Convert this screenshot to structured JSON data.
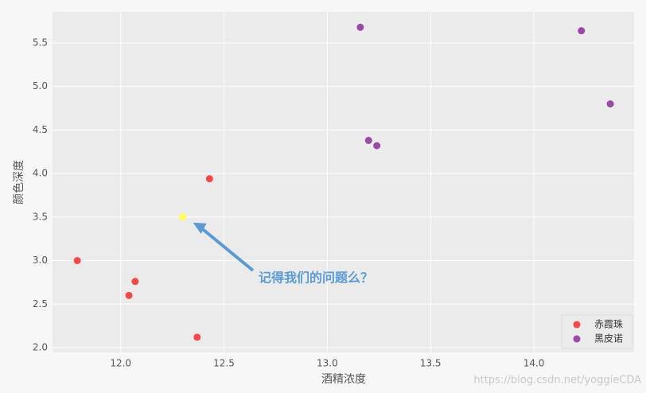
{
  "chart_data": {
    "type": "scatter",
    "xlabel": "酒精浓度",
    "ylabel": "颜色深度",
    "xlim": [
      11.67,
      14.485
    ],
    "ylim": [
      1.945,
      5.856
    ],
    "xticks": [
      {
        "value": 12,
        "label": "12.0"
      },
      12.5,
      {
        "value": 13,
        "label": "13.0"
      },
      13.5,
      {
        "value": 14,
        "label": "14.0"
      }
    ],
    "yticks": [
      {
        "value": 2,
        "label": "2.0"
      },
      2.5,
      {
        "value": 3,
        "label": "3.0"
      },
      3.5,
      {
        "value": 4,
        "label": "4.0"
      },
      4.5,
      {
        "value": 5,
        "label": "5.0"
      },
      5.5
    ],
    "grid": true,
    "legend": "lower right",
    "series": [
      {
        "name": "赤霞珠",
        "color": "#f04a4a",
        "x": [
          11.79,
          12.07,
          12.04,
          12.37,
          12.43
        ],
        "values": [
          3.0,
          2.76,
          2.6,
          2.12,
          3.94
        ]
      },
      {
        "name": "黑皮诺",
        "color": "#9a4aa6",
        "x": [
          13.16,
          14.23,
          14.37,
          13.2,
          13.24
        ],
        "values": [
          5.68,
          5.64,
          4.8,
          4.38,
          4.32
        ]
      }
    ],
    "highlight": {
      "color": "#ffff55",
      "x": [
        12.3
      ],
      "values": [
        3.5
      ]
    },
    "annotation": {
      "text": "记得我们的问题么？",
      "color": "#5b9bd5"
    },
    "watermark": "https://blog.csdn.net/yoggieCDA"
  }
}
